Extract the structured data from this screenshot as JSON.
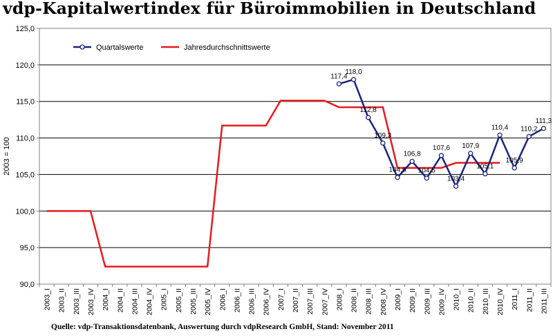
{
  "title": "vdp-Kapitalwertindex für Büroimmobilien in Deutschland",
  "source_note": "Quelle: vdp-Transaktionsdatenbank, Auswertung durch vdpResearch GmbH, Stand: November 2011",
  "colors": {
    "quartal": "#1a237e",
    "jahres": "#e8191e",
    "grid": "#000000"
  },
  "chart_data": {
    "type": "line",
    "ylabel": "2003 = 100",
    "xlabel": "",
    "ylim": [
      90,
      125
    ],
    "yticks": [
      "90,0",
      "95,0",
      "100,0",
      "105,0",
      "110,0",
      "115,0",
      "120,0",
      "125,0"
    ],
    "grid": true,
    "legend_position": "top-left",
    "categories": [
      "2003_I",
      "2003_II",
      "2003_III",
      "2003_IV",
      "2004_I",
      "2004_II",
      "2004_III",
      "2004_IV",
      "2005_I",
      "2005_II",
      "2005_III",
      "2005_IV",
      "2006_I",
      "2006_II",
      "2006_III",
      "2006_IV",
      "2007_I",
      "2007_II",
      "2007_III",
      "2007_IV",
      "2008_I",
      "2008_II",
      "2008_III",
      "2008_IV",
      "2009_I",
      "2009_II",
      "2009_III",
      "2009_IV",
      "2010_I",
      "2010_II",
      "2010_III",
      "2010_IV",
      "2011_I",
      "2011_II",
      "2011_III"
    ],
    "series": [
      {
        "name": "Quartalswerte",
        "style": "line-markers",
        "values": [
          null,
          null,
          null,
          null,
          null,
          null,
          null,
          null,
          null,
          null,
          null,
          null,
          null,
          null,
          null,
          null,
          null,
          null,
          null,
          null,
          117.4,
          118.0,
          112.8,
          109.3,
          104.6,
          106.8,
          104.5,
          107.6,
          103.4,
          107.9,
          105.1,
          110.4,
          105.9,
          110.2,
          111.3
        ],
        "labels": [
          null,
          null,
          null,
          null,
          null,
          null,
          null,
          null,
          null,
          null,
          null,
          null,
          null,
          null,
          null,
          null,
          null,
          null,
          null,
          null,
          "117,4",
          "118,0",
          "112,8",
          "109,3",
          "104,6",
          "106,8",
          "104,5",
          "107,6",
          "103,4",
          "107,9",
          "105,1",
          "110,4",
          "105,9",
          "110,2",
          "111,3"
        ]
      },
      {
        "name": "Jahresdurchschnittswerte",
        "style": "step",
        "values": [
          100.0,
          100.0,
          100.0,
          100.0,
          92.4,
          92.4,
          92.4,
          92.4,
          92.4,
          92.4,
          92.4,
          92.4,
          111.7,
          111.7,
          111.7,
          111.7,
          115.1,
          115.1,
          115.1,
          115.1,
          114.2,
          114.2,
          114.2,
          114.2,
          105.9,
          105.9,
          105.9,
          105.9,
          106.6,
          106.6,
          106.6,
          106.6,
          null,
          null,
          null
        ]
      }
    ]
  }
}
